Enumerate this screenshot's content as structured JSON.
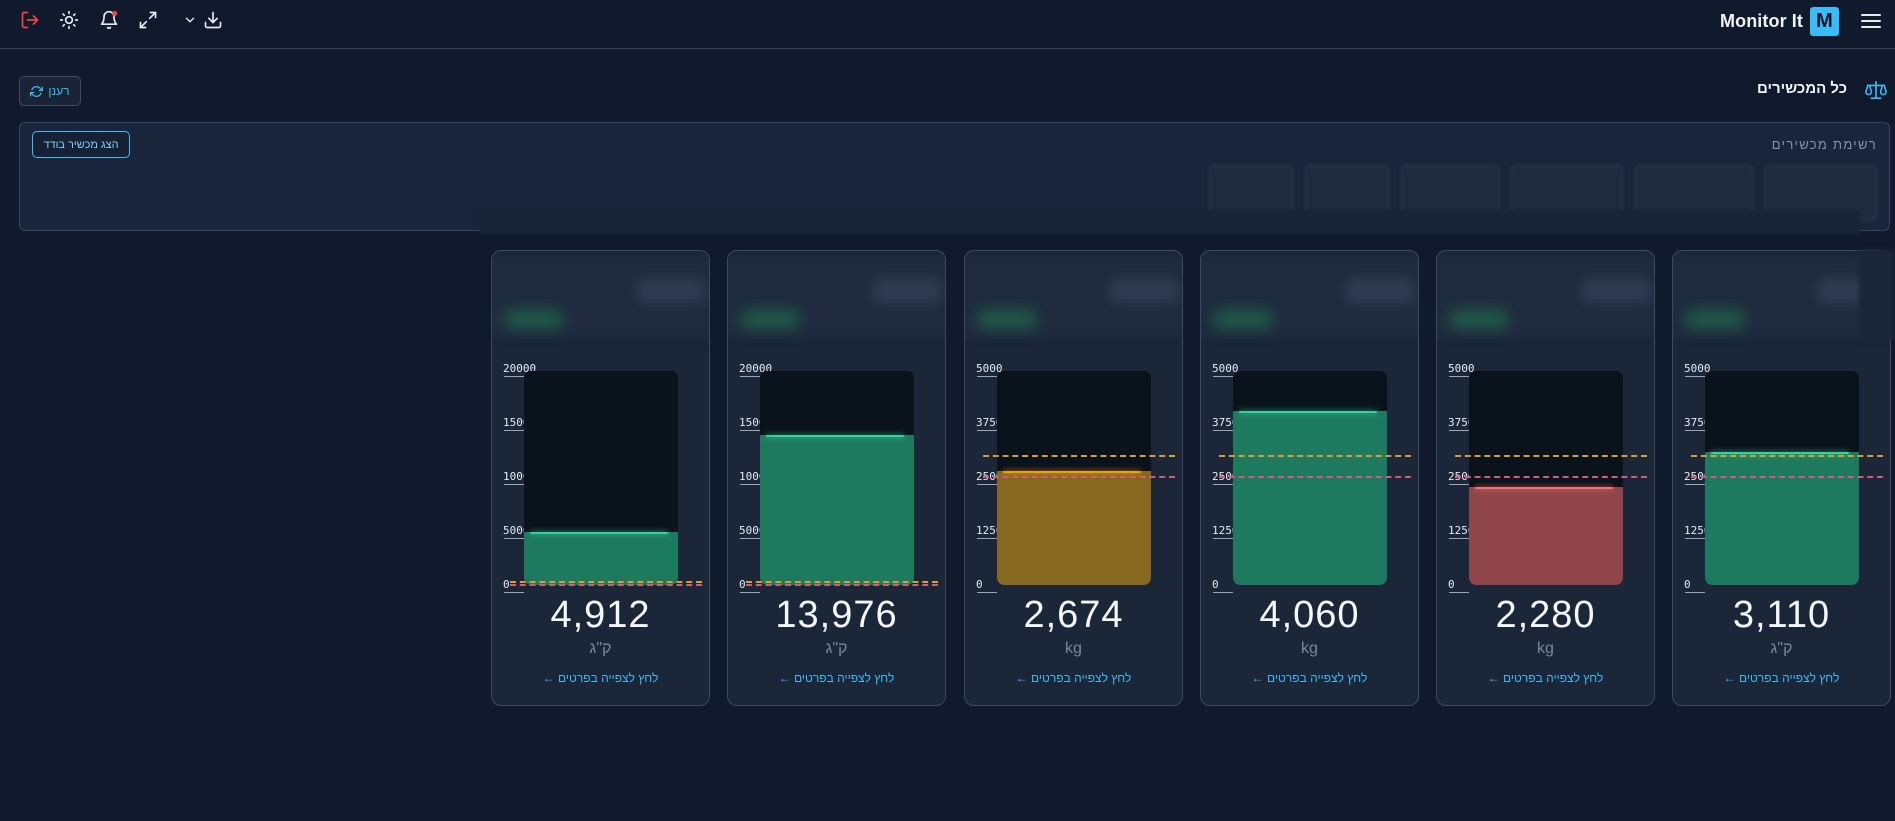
{
  "app": {
    "title": "Monitor It",
    "logo_letter": "M"
  },
  "toolbar": {
    "icons": [
      "logout-icon",
      "sun-icon",
      "bell-icon",
      "expand-icon",
      "chevron-down-icon",
      "download-icon",
      "menu-icon"
    ],
    "accent": "#38bdf8",
    "logout_color": "#ef4444"
  },
  "section": {
    "title": "כל המכשירים",
    "refresh_label": "רענן"
  },
  "devices_panel": {
    "label": "רשימת מכשירים",
    "single_device_button": "הצג מכשיר בודד"
  },
  "cards": [
    {
      "value": "4,912",
      "unit": "ק\"ג",
      "fill_percent": 24.6,
      "status": "ok",
      "scale_ticks": [
        "20000",
        "15000",
        "10000",
        "5000",
        "0"
      ],
      "link": "← לחץ לצפייה בפרטים"
    },
    {
      "value": "13,976",
      "unit": "ק\"ג",
      "fill_percent": 69.9,
      "status": "ok",
      "scale_ticks": [
        "20000",
        "15000",
        "10000",
        "5000",
        "0"
      ],
      "link": "← לחץ לצפייה בפרטים"
    },
    {
      "value": "2,674",
      "unit": "kg",
      "fill_percent": 53.5,
      "status": "warn",
      "scale_ticks": [
        "5000",
        "3750",
        "2500",
        "1250",
        "0"
      ],
      "link": "← לחץ לצפייה בפרטים"
    },
    {
      "value": "4,060",
      "unit": "kg",
      "fill_percent": 81.2,
      "status": "ok",
      "scale_ticks": [
        "5000",
        "3750",
        "2500",
        "1250",
        "0"
      ],
      "link": "← לחץ לצפייה בפרטים"
    },
    {
      "value": "2,280",
      "unit": "kg",
      "fill_percent": 45.6,
      "status": "low",
      "scale_ticks": [
        "5000",
        "3750",
        "2500",
        "1250",
        "0"
      ],
      "link": "← לחץ לצפייה בפרטים"
    },
    {
      "value": "3,110",
      "unit": "ק\"ג",
      "fill_percent": 62.2,
      "status": "ok",
      "scale_ticks": [
        "5000",
        "3750",
        "2500",
        "1250",
        "0"
      ],
      "link": "← לחץ לצפייה בפרטים"
    }
  ]
}
